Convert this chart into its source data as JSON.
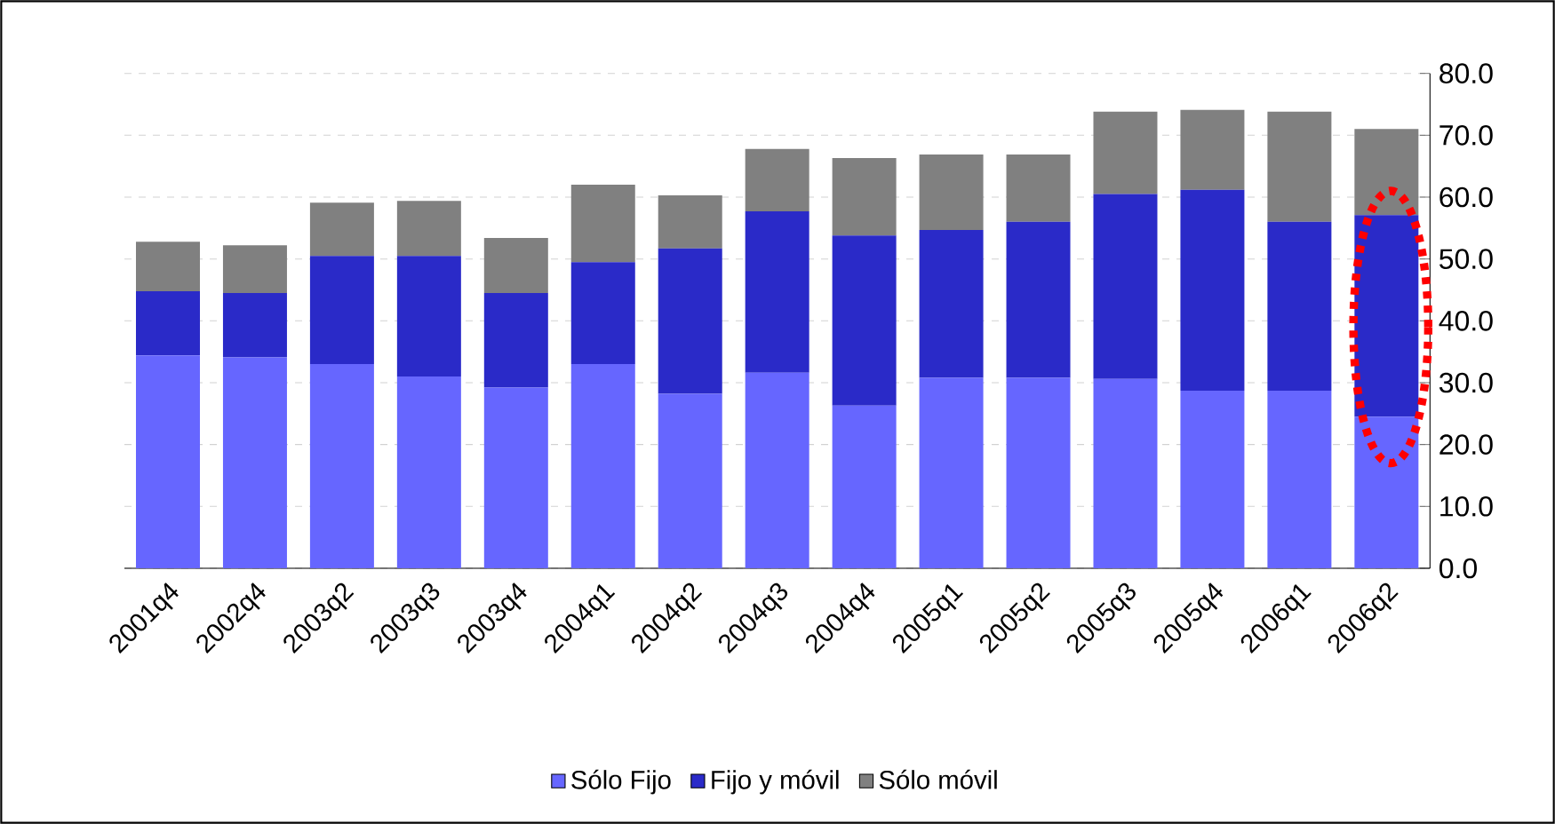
{
  "chart_data": {
    "type": "bar",
    "stacked": true,
    "categories": [
      "2001q4",
      "2002q4",
      "2003q2",
      "2003q3",
      "2003q4",
      "2004q1",
      "2004q2",
      "2004q3",
      "2004q4",
      "2005q1",
      "2005q2",
      "2005q3",
      "2005q4",
      "2006q1",
      "2006q2"
    ],
    "series": [
      {
        "name": "Sólo Fijo",
        "color": "#6666ff",
        "values": [
          34.4,
          34.1,
          33.0,
          31.0,
          29.2,
          33.0,
          28.2,
          31.6,
          26.3,
          30.8,
          30.8,
          30.6,
          28.7,
          28.7,
          24.5
        ]
      },
      {
        "name": "Fijo y móvil",
        "color": "#2a2ac8",
        "values": [
          10.4,
          10.4,
          17.5,
          19.5,
          15.3,
          16.5,
          23.5,
          26.1,
          27.5,
          23.9,
          25.2,
          29.9,
          32.5,
          27.3,
          32.6
        ]
      },
      {
        "name": "Sólo móvil",
        "color": "#808080",
        "values": [
          8.0,
          7.7,
          8.6,
          8.9,
          8.9,
          12.5,
          8.6,
          10.1,
          12.5,
          12.2,
          10.9,
          13.3,
          12.9,
          17.8,
          13.9
        ]
      }
    ],
    "ylim": [
      0,
      80
    ],
    "yticks": [
      {
        "value": 0,
        "label": "0.0"
      },
      {
        "value": 10,
        "label": "10.0"
      },
      {
        "value": 20,
        "label": "20.0"
      },
      {
        "value": 30,
        "label": "30.0"
      },
      {
        "value": 40,
        "label": "40.0"
      },
      {
        "value": 50,
        "label": "50.0"
      },
      {
        "value": 60,
        "label": "60.0"
      },
      {
        "value": 70,
        "label": "70.0"
      },
      {
        "value": 80,
        "label": "80.0"
      }
    ],
    "grid": "y",
    "legend": "bottom"
  }
}
